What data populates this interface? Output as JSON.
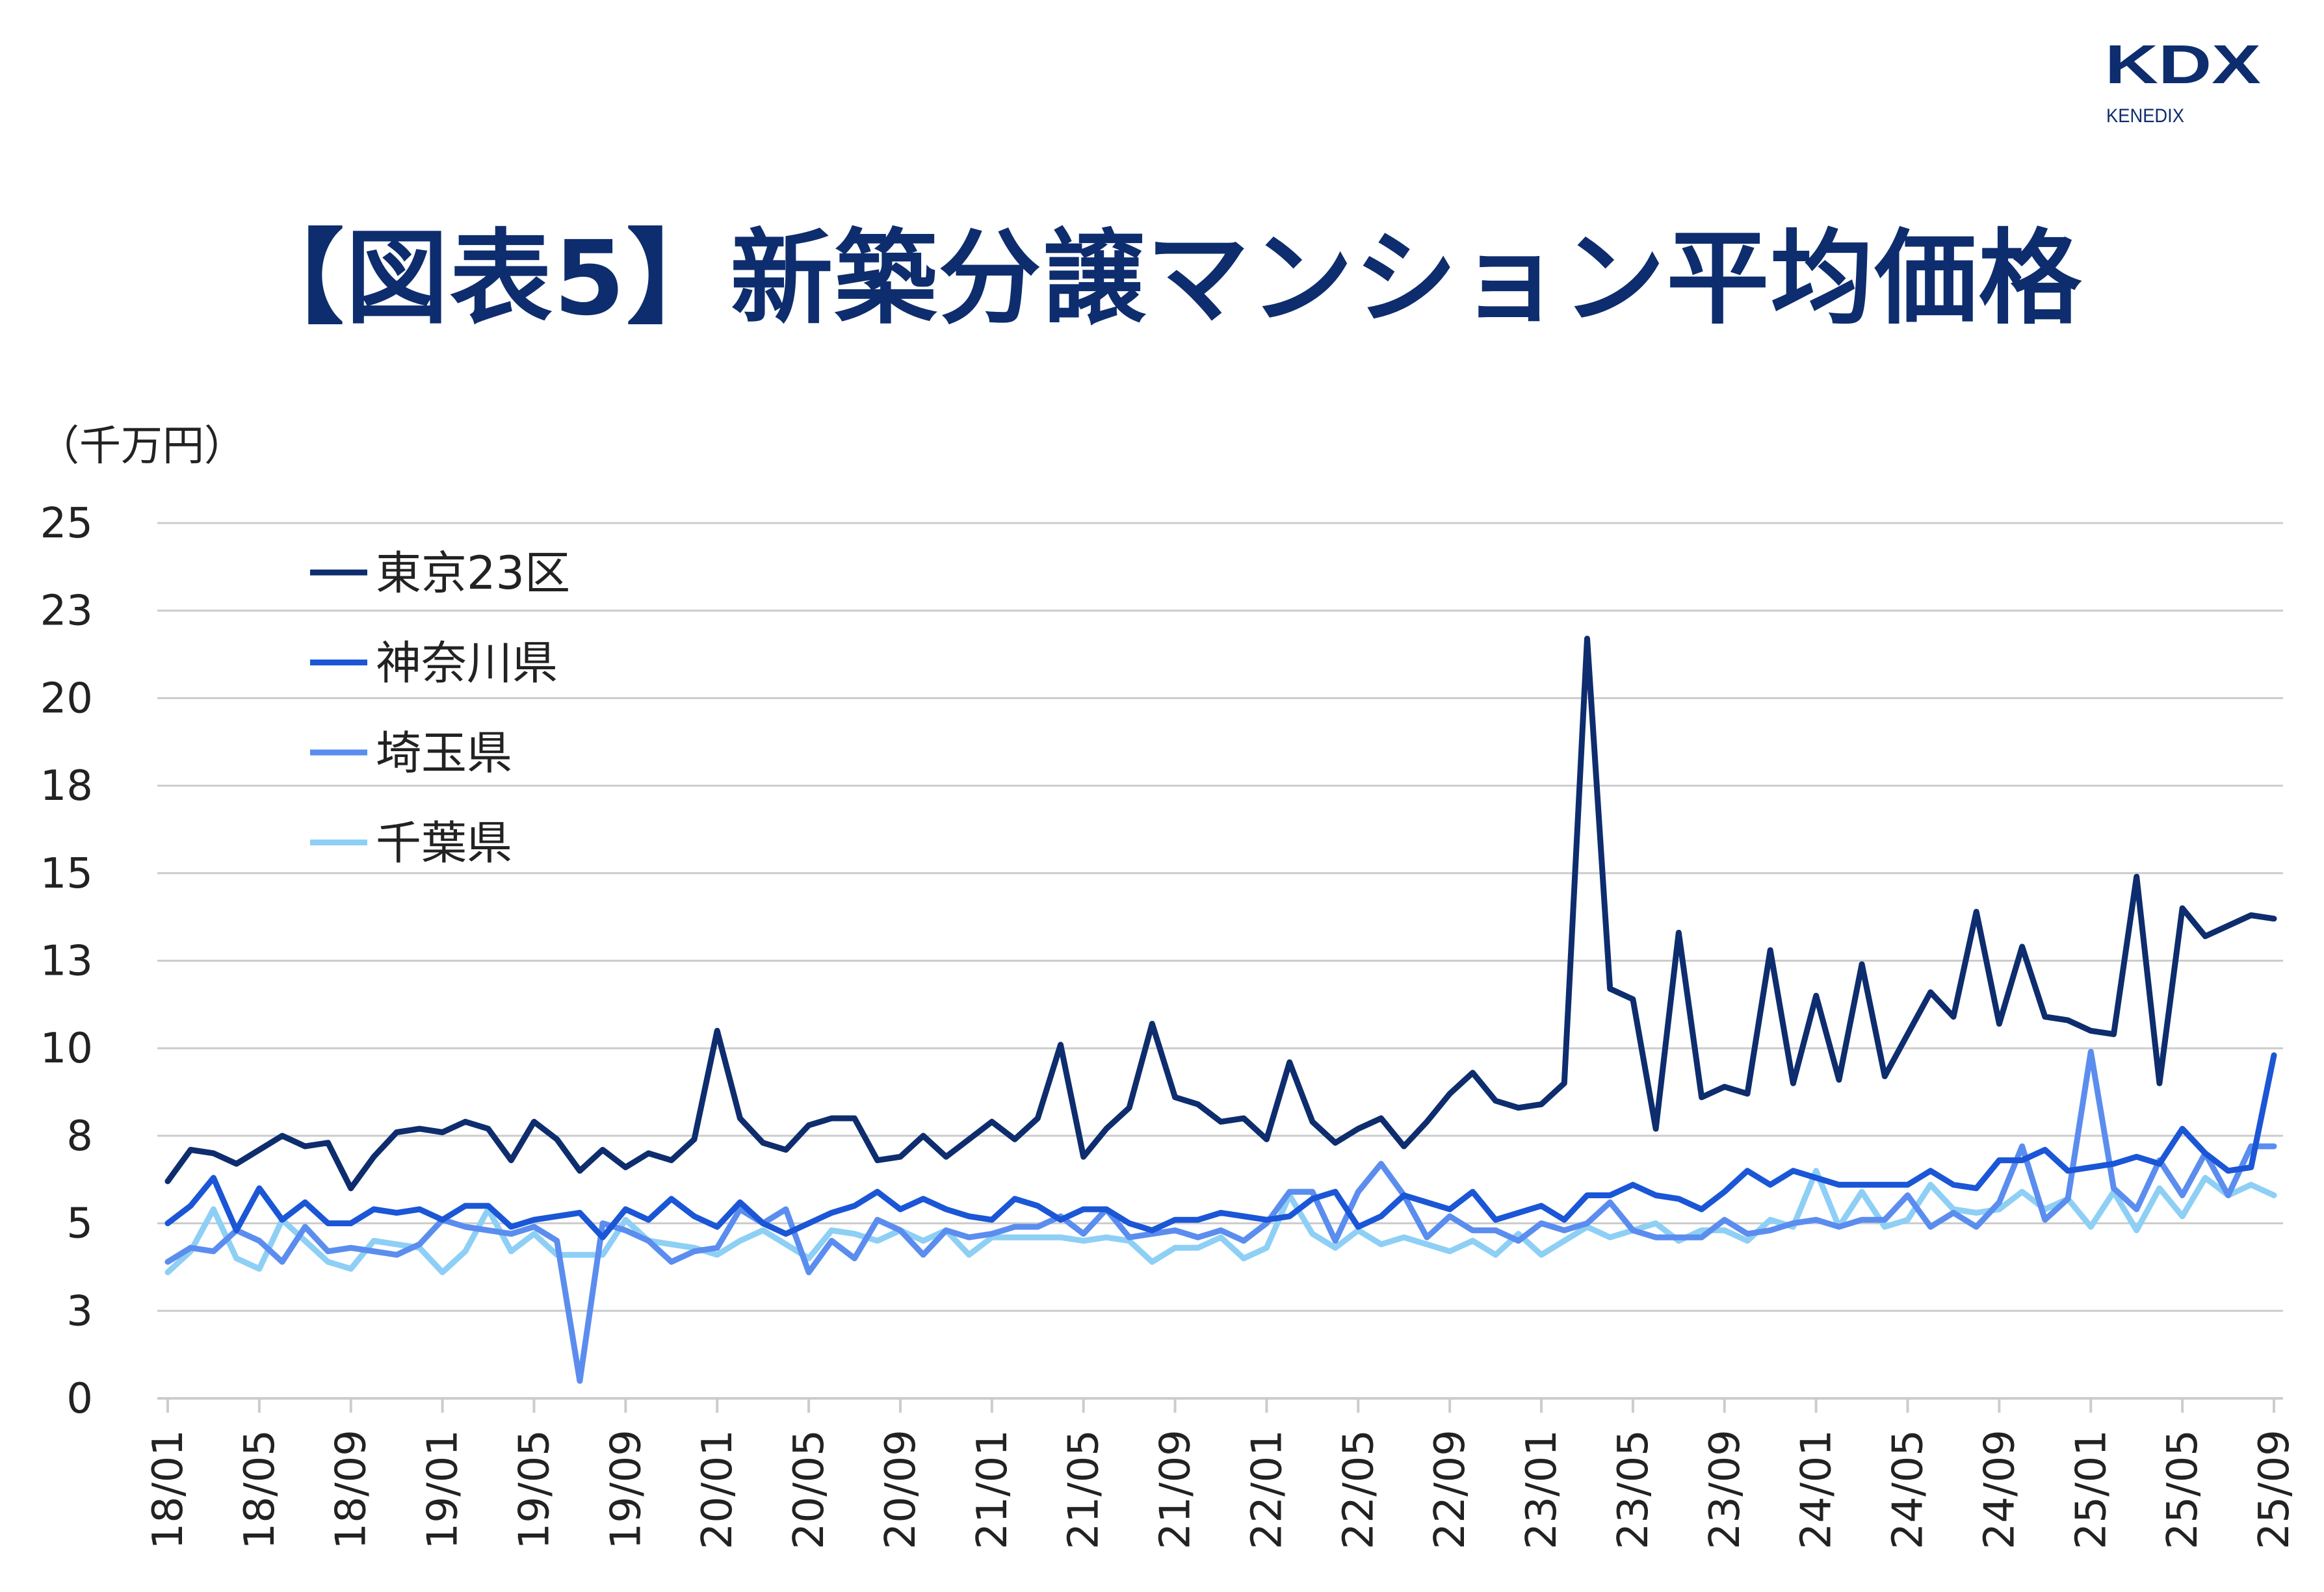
{
  "logo": {
    "mark": "KDX",
    "sub": "KENEDIX",
    "color": "#0e2d6e"
  },
  "title": "【図表5】新築分譲マンション平均価格",
  "chart_data": {
    "type": "line",
    "title": "【図表5】新築分譲マンション平均価格",
    "ylabel": "（千万円）",
    "xlabel": "",
    "ylim": [
      0,
      25
    ],
    "grid": true,
    "legend_position": "top-left",
    "y_ticks": [
      {
        "value": 0,
        "label": "0"
      },
      {
        "value": 2.5,
        "label": "3"
      },
      {
        "value": 5,
        "label": "5"
      },
      {
        "value": 7.5,
        "label": "8"
      },
      {
        "value": 10,
        "label": "10"
      },
      {
        "value": 12.5,
        "label": "13"
      },
      {
        "value": 15,
        "label": "15"
      },
      {
        "value": 17.5,
        "label": "18"
      },
      {
        "value": 20,
        "label": "20"
      },
      {
        "value": 22.5,
        "label": "23"
      },
      {
        "value": 25,
        "label": "25"
      }
    ],
    "x_start": "18/01",
    "x_end": "25/09",
    "x_tick_labels": [
      "18/01",
      "18/05",
      "18/09",
      "19/01",
      "19/05",
      "19/09",
      "20/01",
      "20/05",
      "20/09",
      "21/01",
      "21/05",
      "21/09",
      "22/01",
      "22/05",
      "22/09",
      "23/01",
      "23/05",
      "23/09",
      "24/01",
      "24/05",
      "24/09",
      "25/01",
      "25/05",
      "25/09"
    ],
    "series": [
      {
        "name": "東京23区",
        "color": "#0e2d6e",
        "values": [
          6.2,
          7.1,
          7.0,
          6.7,
          7.1,
          7.5,
          7.2,
          7.3,
          6.0,
          6.9,
          7.6,
          7.7,
          7.6,
          7.9,
          7.7,
          6.8,
          7.9,
          7.4,
          6.5,
          7.1,
          6.6,
          7.0,
          6.8,
          7.4,
          10.5,
          8.0,
          7.3,
          7.1,
          7.8,
          8.0,
          8.0,
          6.8,
          6.9,
          7.5,
          6.9,
          7.4,
          7.9,
          7.4,
          8.0,
          10.1,
          6.9,
          7.7,
          8.3,
          10.7,
          8.6,
          8.4,
          7.9,
          8.0,
          7.4,
          9.6,
          7.9,
          7.3,
          7.7,
          8.0,
          7.2,
          7.9,
          8.7,
          9.3,
          8.5,
          8.3,
          8.4,
          9.0,
          21.7,
          11.7,
          11.4,
          7.7,
          13.3,
          8.6,
          8.9,
          8.7,
          12.8,
          9.0,
          11.5,
          9.1,
          12.4,
          9.2,
          10.4,
          11.6,
          10.9,
          13.9,
          10.7,
          12.9,
          10.9,
          10.8,
          10.5,
          10.4,
          14.9,
          9.0,
          14.0,
          13.2,
          13.5,
          13.8,
          13.7
        ]
      },
      {
        "name": "神奈川県",
        "color": "#1a56d6",
        "values": [
          5.0,
          5.5,
          6.3,
          4.8,
          6.0,
          5.1,
          5.6,
          5.0,
          5.0,
          5.4,
          5.3,
          5.4,
          5.1,
          5.5,
          5.5,
          4.9,
          5.1,
          5.2,
          5.3,
          4.6,
          5.4,
          5.1,
          5.7,
          5.2,
          4.9,
          5.6,
          5.0,
          4.7,
          5.0,
          5.3,
          5.5,
          5.9,
          5.4,
          5.7,
          5.4,
          5.2,
          5.1,
          5.7,
          5.5,
          5.1,
          5.4,
          5.4,
          5.0,
          4.8,
          5.1,
          5.1,
          5.3,
          5.2,
          5.1,
          5.2,
          5.7,
          5.9,
          4.9,
          5.2,
          5.8,
          5.6,
          5.4,
          5.9,
          5.1,
          5.3,
          5.5,
          5.1,
          5.8,
          5.8,
          6.1,
          5.8,
          5.7,
          5.4,
          5.9,
          6.5,
          6.1,
          6.5,
          6.3,
          6.1,
          6.1,
          6.1,
          6.1,
          6.5,
          6.1,
          6.0,
          6.8,
          6.8,
          7.1,
          6.5,
          6.6,
          6.7,
          6.9,
          6.7,
          7.7,
          7.0,
          6.5,
          6.6,
          9.8
        ]
      },
      {
        "name": "埼玉県",
        "color": "#5b8def",
        "values": [
          3.9,
          4.3,
          4.2,
          4.8,
          4.5,
          3.9,
          4.9,
          4.2,
          4.3,
          4.2,
          4.1,
          4.4,
          5.1,
          4.9,
          4.8,
          4.7,
          4.9,
          4.5,
          0.5,
          5.0,
          4.8,
          4.5,
          3.9,
          4.2,
          4.3,
          5.4,
          5.0,
          5.4,
          3.6,
          4.5,
          4.0,
          5.1,
          4.8,
          4.1,
          4.8,
          4.6,
          4.7,
          4.9,
          4.9,
          5.2,
          4.7,
          5.4,
          4.6,
          4.7,
          4.8,
          4.6,
          4.8,
          4.5,
          5.0,
          5.9,
          5.9,
          4.5,
          5.9,
          6.7,
          5.8,
          4.6,
          5.2,
          4.8,
          4.8,
          4.5,
          5.0,
          4.8,
          5.0,
          5.6,
          4.8,
          4.6,
          4.6,
          4.6,
          5.1,
          4.7,
          4.8,
          5.0,
          5.1,
          4.9,
          5.1,
          5.1,
          5.8,
          4.9,
          5.3,
          4.9,
          5.6,
          7.2,
          5.1,
          5.7,
          9.9,
          6.0,
          5.4,
          6.8,
          5.8,
          7.0,
          5.8,
          7.2,
          7.2
        ]
      },
      {
        "name": "千葉県",
        "color": "#8ecff5",
        "values": [
          3.6,
          4.2,
          5.4,
          4.0,
          3.7,
          5.1,
          4.5,
          3.9,
          3.7,
          4.5,
          4.4,
          4.3,
          3.6,
          4.2,
          5.4,
          4.2,
          4.7,
          4.1,
          4.1,
          4.1,
          5.1,
          4.5,
          4.4,
          4.3,
          4.1,
          4.5,
          4.8,
          4.4,
          4.0,
          4.8,
          4.7,
          4.5,
          4.8,
          4.5,
          4.8,
          4.1,
          4.6,
          4.6,
          4.6,
          4.6,
          4.5,
          4.6,
          4.5,
          3.9,
          4.3,
          4.3,
          4.6,
          4.0,
          4.3,
          5.8,
          4.7,
          4.3,
          4.8,
          4.4,
          4.6,
          4.4,
          4.2,
          4.5,
          4.1,
          4.7,
          4.1,
          4.5,
          4.9,
          4.6,
          4.8,
          5.0,
          4.5,
          4.8,
          4.8,
          4.5,
          5.1,
          4.9,
          6.5,
          4.9,
          5.9,
          4.9,
          5.1,
          6.1,
          5.4,
          5.3,
          5.4,
          5.9,
          5.4,
          5.7,
          4.9,
          5.9,
          4.8,
          6.0,
          5.2,
          6.3,
          5.8,
          6.1,
          5.8
        ]
      }
    ]
  }
}
